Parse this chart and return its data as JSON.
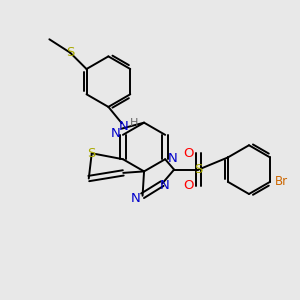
{
  "background_color": "#e8e8e8",
  "bond_color": "#000000",
  "atom_colors": {
    "S": "#aaaa00",
    "N": "#0000cc",
    "O": "#ff0000",
    "Br": "#cc6600",
    "H": "#666666",
    "C": "#000000"
  },
  "line_width": 1.4,
  "font_size": 8.5,
  "figsize": [
    3.0,
    3.0
  ],
  "dpi": 100
}
